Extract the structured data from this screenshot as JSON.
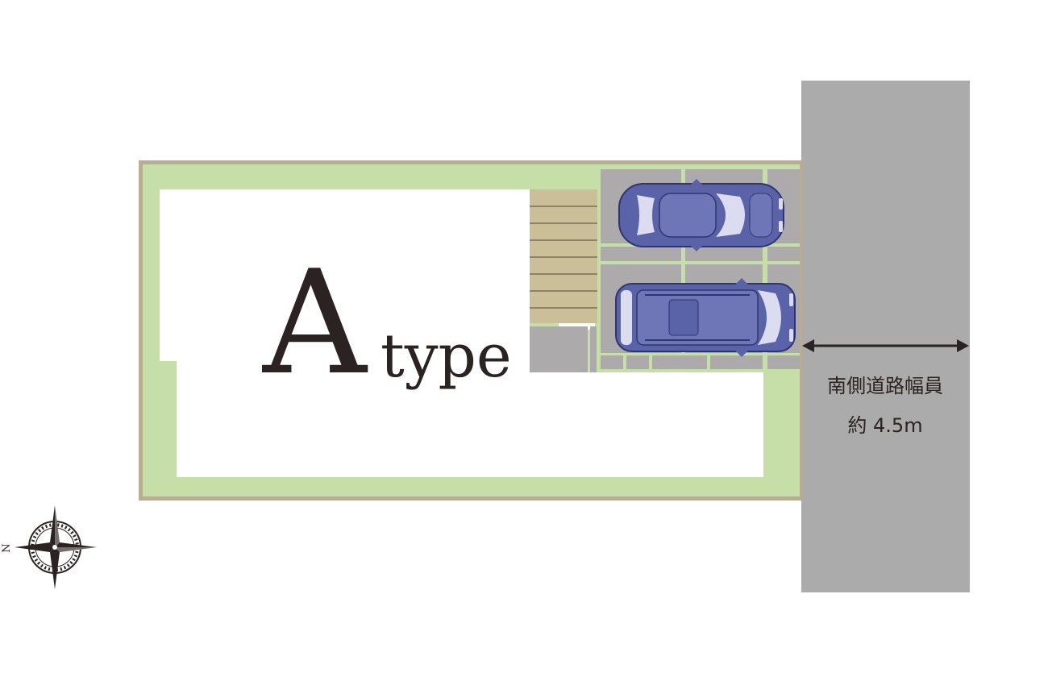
{
  "plan": {
    "type_letter": "A",
    "type_word": "type"
  },
  "road": {
    "label_line1": "南側道路幅員",
    "label_line2": "約 4.5m"
  },
  "compass": {
    "north_letter": "N"
  },
  "colors": {
    "garden": "#c6dea8",
    "boundary": "#b8ad93",
    "paving": "#acaaab",
    "road": "#acabab",
    "deck": "#cbbf9a",
    "car_body": "#5a62a8",
    "car_glass": "#dcdcf0",
    "ink": "#2a2321"
  }
}
